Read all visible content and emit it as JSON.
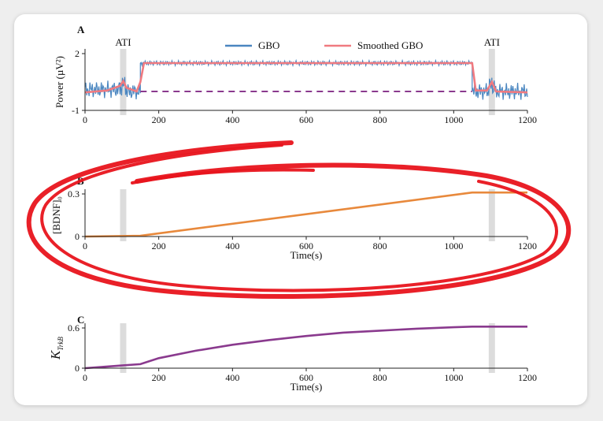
{
  "panels": {
    "a": {
      "letter": "A"
    },
    "b": {
      "letter": "B"
    },
    "c": {
      "letter": "C"
    }
  },
  "chart_data": [
    {
      "panel": "A",
      "type": "line",
      "ylabel": "Power (µV²)",
      "xlim": [
        0,
        1200
      ],
      "ylim": [
        -1,
        2
      ],
      "xticks": [
        "0",
        "200",
        "400",
        "600",
        "800",
        "1000",
        "1200"
      ],
      "yticks": [
        "-1",
        "2"
      ],
      "legend": "top-center",
      "annotations": [
        "ATI",
        "ATI"
      ],
      "shaded_regions": [
        [
          95,
          112
        ],
        [
          1095,
          1112
        ]
      ],
      "series": [
        {
          "name": "GBO",
          "color": "#4a86c0",
          "segments": [
            {
              "x": [
                0,
                95
              ],
              "mean": 0.1,
              "amplitude": 0.45
            },
            {
              "x": [
                95,
                112
              ],
              "mean": 0.3,
              "amplitude": 0.6
            },
            {
              "x": [
                112,
                150
              ],
              "mean": 0.0,
              "amplitude": 0.45
            },
            {
              "x": [
                150,
                1050
              ],
              "mean": 1.5,
              "amplitude": 0.12
            },
            {
              "x": [
                1050,
                1095
              ],
              "mean": 0.0,
              "amplitude": 0.45
            },
            {
              "x": [
                1095,
                1112
              ],
              "mean": 0.3,
              "amplitude": 0.6
            },
            {
              "x": [
                1112,
                1200
              ],
              "mean": 0.0,
              "amplitude": 0.45
            }
          ]
        },
        {
          "name": "Smoothed GBO",
          "color": "#f07a80",
          "x": [
            0,
            60,
            95,
            104,
            112,
            140,
            150,
            160,
            1050,
            1060,
            1090,
            1104,
            1115,
            1200
          ],
          "y": [
            -0.05,
            0.05,
            0.3,
            0.55,
            0.2,
            0.0,
            0.5,
            1.5,
            1.5,
            0.05,
            0.05,
            0.5,
            0.0,
            -0.05
          ]
        },
        {
          "name": "",
          "color": "#8a3a8e",
          "style": "dashed",
          "x": [
            150,
            1050
          ],
          "y": [
            0.0,
            0.0
          ]
        }
      ]
    },
    {
      "panel": "B",
      "type": "line",
      "xlabel": "Time(s)",
      "ylabel": "[BDNF]₀",
      "xlim": [
        0,
        1200
      ],
      "ylim": [
        0,
        0.3
      ],
      "xticks": [
        "0",
        "200",
        "400",
        "600",
        "800",
        "1000",
        "1200"
      ],
      "yticks": [
        "0",
        "0.3"
      ],
      "shaded_regions": [
        [
          95,
          112
        ],
        [
          1095,
          1112
        ]
      ],
      "series": [
        {
          "name": "",
          "color": "#e8893c",
          "x": [
            0,
            150,
            1050,
            1200
          ],
          "y": [
            0.0,
            0.005,
            0.31,
            0.31
          ]
        }
      ]
    },
    {
      "panel": "C",
      "type": "line",
      "xlabel": "Time(s)",
      "ylabel": "K_TrkB",
      "xlim": [
        0,
        1200
      ],
      "ylim": [
        0,
        0.6
      ],
      "xticks": [
        "0",
        "200",
        "400",
        "600",
        "800",
        "1000",
        "1200"
      ],
      "yticks": [
        "0",
        "0.6"
      ],
      "shaded_regions": [
        [
          95,
          112
        ],
        [
          1095,
          1112
        ]
      ],
      "series": [
        {
          "name": "",
          "color": "#8a3a8e",
          "x": [
            0,
            50,
            100,
            150,
            200,
            300,
            400,
            500,
            600,
            700,
            800,
            900,
            1000,
            1050,
            1100,
            1200
          ],
          "y": [
            0.0,
            0.02,
            0.04,
            0.06,
            0.15,
            0.26,
            0.35,
            0.42,
            0.48,
            0.53,
            0.56,
            0.59,
            0.61,
            0.62,
            0.62,
            0.62
          ]
        }
      ]
    }
  ],
  "colors": {
    "shade": "#dcdcdc",
    "annotation_ellipse": "#e8141c",
    "axis": "#222222"
  }
}
